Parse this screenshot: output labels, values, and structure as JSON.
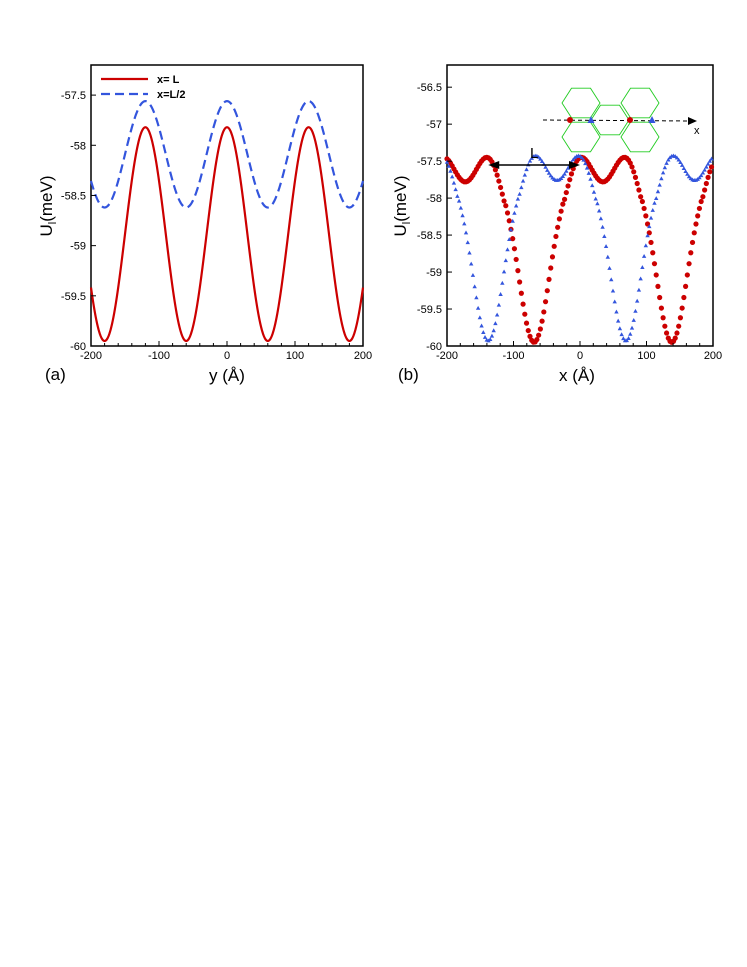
{
  "chart_data": [
    {
      "type": "line",
      "panel_label": "(a)",
      "xlabel": "y (Å)",
      "ylabel": "U",
      "ylabel_sub": "l",
      "ylabel_unit": "(meV)",
      "xlim": [
        -200,
        200
      ],
      "ylim": [
        -60,
        -57.2
      ],
      "x_ticks": [
        "-200",
        "-100",
        "0",
        "100",
        "200"
      ],
      "y_ticks": [
        "-57.5",
        "-58",
        "-58.5",
        "-59",
        "-59.5",
        "-60"
      ],
      "grid": false,
      "legend_position": "top-left",
      "series": [
        {
          "name": "x= L",
          "style": "solid",
          "color": "#cc0000",
          "period": 120,
          "max": -57.82,
          "min": -59.95,
          "peak_at": 0,
          "curve_shape": "cosine"
        },
        {
          "name": "x=L/2",
          "style": "dashed",
          "color": "#3355dd",
          "period": 120,
          "max": -57.56,
          "min": -58.62,
          "peak_at": 0,
          "curve_shape": "cosine"
        }
      ]
    },
    {
      "type": "scatter",
      "panel_label": "(b)",
      "xlabel": "x (Å)",
      "ylabel": "U",
      "ylabel_sub": "l",
      "ylabel_unit": "(meV)",
      "xlim": [
        -200,
        200
      ],
      "ylim": [
        -60,
        -56.2
      ],
      "x_ticks": [
        "-200",
        "-100",
        "0",
        "100",
        "200"
      ],
      "y_ticks": [
        "-56.5",
        "-57",
        "-57.5",
        "-58",
        "-58.5",
        "-59",
        "-59.5",
        "-60"
      ],
      "grid": false,
      "annotation": {
        "label": "L",
        "x_from": -138,
        "x_to": 0,
        "y": -57.3
      },
      "inset": {
        "axis_label": "x",
        "description_shapes": "honeycomb"
      },
      "series": [
        {
          "marker": "circle",
          "color": "#cc0000",
          "period": 207,
          "global_min_at": [
            -69,
            138
          ],
          "major_peaks_at": [
            -138,
            69
          ],
          "minor_peak_at": [
            0,
            207
          ],
          "baseline": -57.52
        },
        {
          "marker": "triangle",
          "color": "#3355dd",
          "period": 207,
          "global_min_at": [
            -138,
            69
          ],
          "major_peaks_at": [
            -207,
            0
          ],
          "minor_peak_at": [
            -69,
            138
          ],
          "baseline": -57.55
        }
      ]
    }
  ]
}
